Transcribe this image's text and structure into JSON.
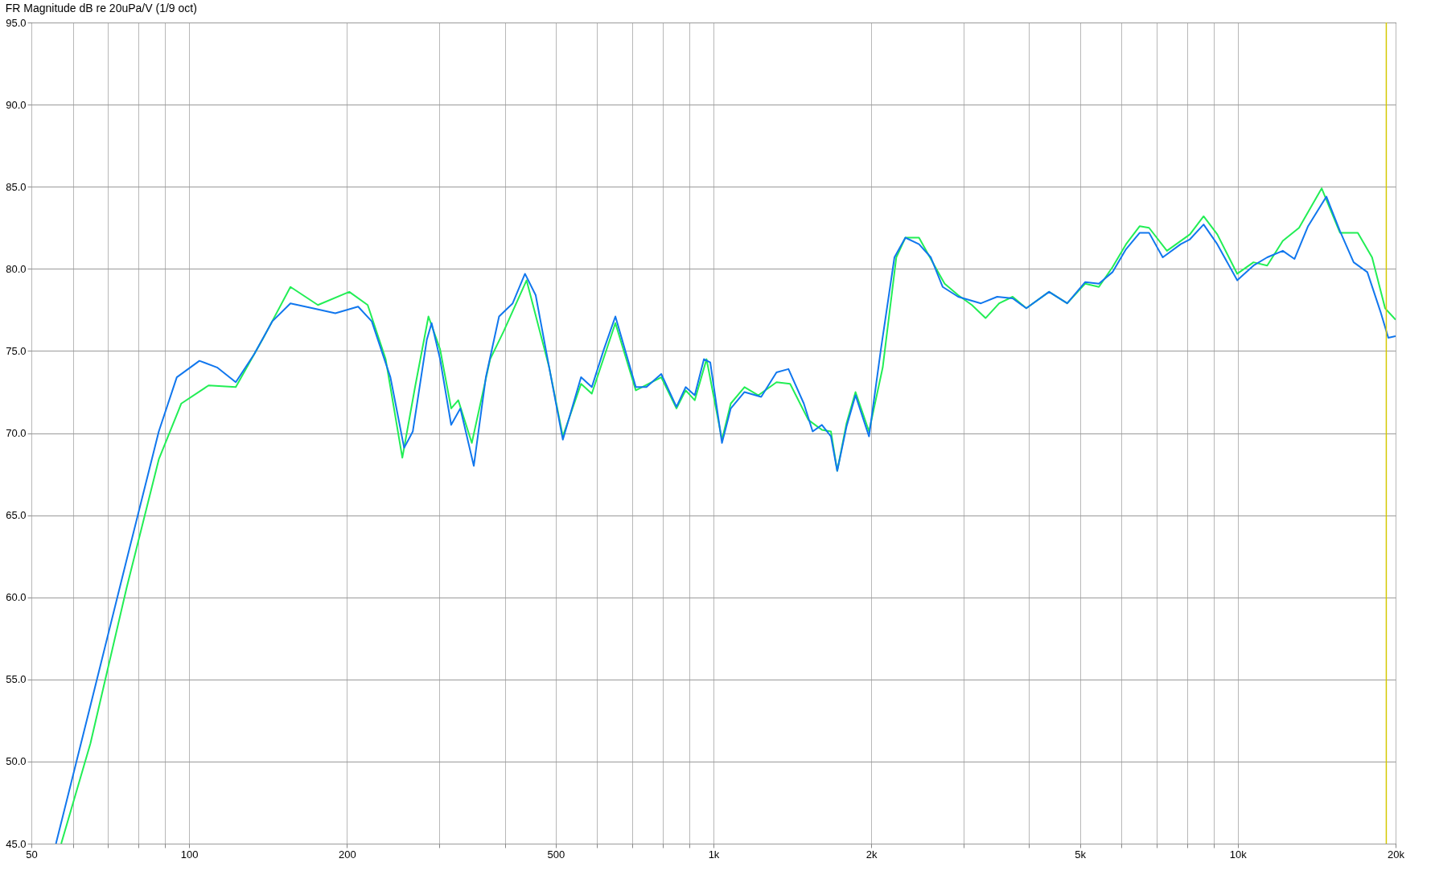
{
  "chart_data": {
    "type": "line",
    "title": "FR Magnitude dB re 20uPa/V (1/9 oct)",
    "log": "x",
    "grid": true,
    "line_style": "solid",
    "marker": "none",
    "xlim": [
      50,
      20000
    ],
    "ylim": [
      45,
      95
    ],
    "xticks": [
      50,
      {
        "value": 60,
        "label": null
      },
      {
        "value": 70,
        "label": null
      },
      {
        "value": 80,
        "label": null
      },
      {
        "value": 90,
        "label": null
      },
      100,
      200,
      {
        "value": 300,
        "label": null
      },
      {
        "value": 400,
        "label": null
      },
      500,
      {
        "value": 600,
        "label": null
      },
      {
        "value": 700,
        "label": null
      },
      {
        "value": 800,
        "label": null
      },
      {
        "value": 900,
        "label": null
      },
      {
        "value": 1000,
        "label": "1k"
      },
      {
        "value": 2000,
        "label": "2k"
      },
      {
        "value": 3000,
        "label": null
      },
      {
        "value": 4000,
        "label": null
      },
      {
        "value": 5000,
        "label": "5k"
      },
      {
        "value": 6000,
        "label": null
      },
      {
        "value": 7000,
        "label": null
      },
      {
        "value": 8000,
        "label": null
      },
      {
        "value": 9000,
        "label": null
      },
      {
        "value": 10000,
        "label": "10k"
      },
      {
        "value": 20000,
        "label": "20k"
      }
    ],
    "yticks": [
      {
        "value": 45,
        "label": "45.0"
      },
      {
        "value": 50,
        "label": "50.0"
      },
      {
        "value": 55,
        "label": "55.0"
      },
      {
        "value": 60,
        "label": "60.0"
      },
      {
        "value": 65,
        "label": "65.0"
      },
      {
        "value": 70,
        "label": "70.0"
      },
      {
        "value": 75,
        "label": "75.0"
      },
      {
        "value": 80,
        "label": "80.0"
      },
      {
        "value": 85,
        "label": "85.0"
      },
      {
        "value": 90,
        "label": "90.0"
      },
      {
        "value": 95,
        "label": "95.0"
      }
    ],
    "ref_lines": [
      {
        "axis": "x",
        "value": 19200,
        "color": "#d4c800"
      }
    ],
    "series": [
      {
        "color": "#22ee55",
        "x": [
          57,
          64.8,
          76,
          87.5,
          96.6,
          108.9,
          122.7,
          138,
          156,
          176,
          202,
          219,
          237,
          255,
          270,
          286,
          301,
          316,
          326,
          346,
          375,
          398,
          440,
          486,
          516,
          559,
          586,
          650,
          711,
          795,
          850,
          885,
          921,
          970,
          1038,
          1079,
          1146,
          1218,
          1319,
          1400,
          1517,
          1610,
          1675,
          1722,
          1794,
          1866,
          1980,
          2103,
          2232,
          2323,
          2466,
          2650,
          2760,
          2929,
          3111,
          3303,
          3507,
          3721,
          3951,
          4366,
          4728,
          5118,
          5434,
          5768,
          6122,
          6502,
          6773,
          7327,
          8106,
          8607,
          9140,
          9977,
          10716,
          11380,
          12187,
          13089,
          14455,
          15667,
          16942,
          18037,
          19101,
          20000
        ],
        "values": [
          45.0,
          51.1,
          60.6,
          68.4,
          71.8,
          72.9,
          72.8,
          75.7,
          78.9,
          77.8,
          78.6,
          77.8,
          74.5,
          68.5,
          72.9,
          77.1,
          75.1,
          71.5,
          72.0,
          69.4,
          74.5,
          76.2,
          79.3,
          74.0,
          69.8,
          73.0,
          72.4,
          76.7,
          72.6,
          73.4,
          71.5,
          72.6,
          72.0,
          74.5,
          69.6,
          71.8,
          72.8,
          72.3,
          73.1,
          73.0,
          70.8,
          70.2,
          70.1,
          67.7,
          70.6,
          72.5,
          70.1,
          74.0,
          80.7,
          81.9,
          81.9,
          80.1,
          79.1,
          78.4,
          77.8,
          77.0,
          77.9,
          78.3,
          77.6,
          78.6,
          77.9,
          79.1,
          78.9,
          80.1,
          81.5,
          82.6,
          82.5,
          81.1,
          82.1,
          83.2,
          82.1,
          79.7,
          80.4,
          80.2,
          81.7,
          82.5,
          84.9,
          82.2,
          82.2,
          80.7,
          77.6,
          76.9
        ]
      },
      {
        "color": "#1177ee",
        "x": [
          55.7,
          64.8,
          76,
          87.5,
          94.7,
          104.6,
          113,
          122.7,
          133,
          144,
          156,
          172,
          190,
          210,
          223,
          242,
          257,
          267,
          284,
          290,
          301,
          316,
          329,
          349,
          368,
          390,
          414,
          437,
          458,
          486,
          516,
          559,
          586,
          618,
          650,
          682,
          711,
          745,
          795,
          850,
          885,
          921,
          959,
          986,
          1038,
          1079,
          1146,
          1233,
          1319,
          1390,
          1487,
          1546,
          1610,
          1675,
          1722,
          1794,
          1866,
          1980,
          2086,
          2214,
          2323,
          2466,
          2598,
          2737,
          2929,
          3237,
          3476,
          3721,
          3951,
          4366,
          4728,
          5118,
          5434,
          5768,
          6122,
          6502,
          6773,
          7193,
          7782,
          8106,
          8607,
          9140,
          9977,
          10716,
          11380,
          12187,
          12828,
          13618,
          14757,
          15667,
          16636,
          17665,
          18757,
          19370,
          20000
        ],
        "values": [
          45.0,
          53.4,
          62.3,
          70.1,
          73.4,
          74.4,
          74.0,
          73.1,
          74.8,
          76.8,
          77.9,
          77.6,
          77.3,
          77.7,
          76.8,
          73.4,
          69.1,
          70.1,
          75.7,
          76.7,
          74.5,
          70.5,
          71.5,
          68.0,
          73.4,
          77.1,
          77.9,
          79.7,
          78.4,
          74.0,
          69.6,
          73.4,
          72.8,
          75.1,
          77.1,
          74.8,
          72.8,
          72.8,
          73.6,
          71.6,
          72.8,
          72.3,
          74.5,
          74.3,
          69.4,
          71.5,
          72.5,
          72.2,
          73.7,
          73.9,
          71.8,
          70.1,
          70.5,
          69.8,
          67.7,
          70.4,
          72.3,
          69.8,
          75.1,
          80.7,
          81.9,
          81.5,
          80.7,
          78.9,
          78.3,
          77.9,
          78.3,
          78.2,
          77.6,
          78.6,
          77.9,
          79.2,
          79.1,
          79.8,
          81.2,
          82.2,
          82.2,
          80.7,
          81.5,
          81.8,
          82.7,
          81.5,
          79.3,
          80.2,
          80.7,
          81.1,
          80.6,
          82.6,
          84.4,
          82.3,
          80.4,
          79.8,
          77.3,
          75.8,
          75.9
        ]
      }
    ]
  }
}
